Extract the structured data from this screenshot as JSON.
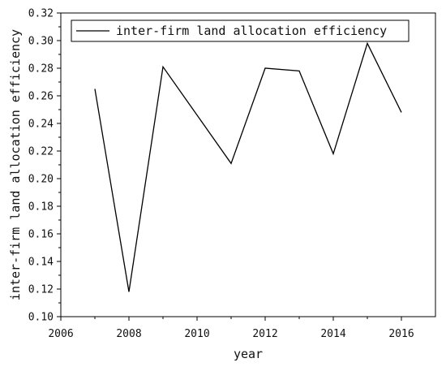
{
  "chart_data": {
    "type": "line",
    "title": "",
    "xlabel": "year",
    "ylabel": "inter-firm land allocation efficiency",
    "xlim": [
      2006,
      2017
    ],
    "ylim": [
      0.1,
      0.32
    ],
    "x_ticks": [
      2006,
      2008,
      2010,
      2012,
      2014,
      2016
    ],
    "x_tick_labels": [
      "2006",
      "2008",
      "2010",
      "2012",
      "2014",
      "2016"
    ],
    "y_ticks": [
      0.1,
      0.12,
      0.14,
      0.16,
      0.18,
      0.2,
      0.22,
      0.24,
      0.26,
      0.28,
      0.3,
      0.32
    ],
    "y_tick_labels": [
      "0.10",
      "0.12",
      "0.14",
      "0.16",
      "0.18",
      "0.20",
      "0.22",
      "0.24",
      "0.26",
      "0.28",
      "0.30",
      "0.32"
    ],
    "grid": false,
    "legend_position": "top",
    "series": [
      {
        "name": "inter-firm land allocation efficiency",
        "color": "#000000",
        "x": [
          2007,
          2008,
          2009,
          2011,
          2012,
          2013,
          2014,
          2015,
          2016
        ],
        "values": [
          0.265,
          0.118,
          0.281,
          0.211,
          0.28,
          0.278,
          0.218,
          0.298,
          0.248
        ]
      }
    ]
  }
}
